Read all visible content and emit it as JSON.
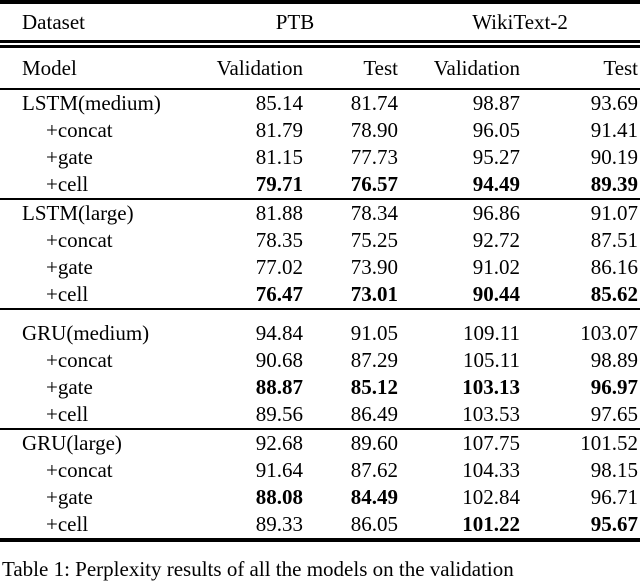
{
  "page": {
    "background_color": "#ffffff",
    "text_color": "#000000"
  },
  "table": {
    "header": {
      "dataset_label": "Dataset",
      "model_label": "Model",
      "group_ptb": "PTB",
      "group_wikitext": "WikiText-2",
      "col_validation_ptb": "Validation",
      "col_test_ptb": "Test",
      "col_validation_wt2": "Validation",
      "col_test_wt2": "Test"
    },
    "blocks": [
      {
        "rows": [
          {
            "model": "LSTM(medium)",
            "indent": false,
            "values": [
              "85.14",
              "81.74",
              "98.87",
              "93.69"
            ],
            "bold": [
              false,
              false,
              false,
              false
            ]
          },
          {
            "model": "+concat",
            "indent": true,
            "values": [
              "81.79",
              "78.90",
              "96.05",
              "91.41"
            ],
            "bold": [
              false,
              false,
              false,
              false
            ]
          },
          {
            "model": "+gate",
            "indent": true,
            "values": [
              "81.15",
              "77.73",
              "95.27",
              "90.19"
            ],
            "bold": [
              false,
              false,
              false,
              false
            ]
          },
          {
            "model": "+cell",
            "indent": true,
            "values": [
              "79.71",
              "76.57",
              "94.49",
              "89.39"
            ],
            "bold": [
              true,
              true,
              true,
              true
            ]
          }
        ]
      },
      {
        "rows": [
          {
            "model": "LSTM(large)",
            "indent": false,
            "values": [
              "81.88",
              "78.34",
              "96.86",
              "91.07"
            ],
            "bold": [
              false,
              false,
              false,
              false
            ]
          },
          {
            "model": "+concat",
            "indent": true,
            "values": [
              "78.35",
              "75.25",
              "92.72",
              "87.51"
            ],
            "bold": [
              false,
              false,
              false,
              false
            ]
          },
          {
            "model": "+gate",
            "indent": true,
            "values": [
              "77.02",
              "73.90",
              "91.02",
              "86.16"
            ],
            "bold": [
              false,
              false,
              false,
              false
            ]
          },
          {
            "model": "+cell",
            "indent": true,
            "values": [
              "76.47",
              "73.01",
              "90.44",
              "85.62"
            ],
            "bold": [
              true,
              true,
              true,
              true
            ]
          }
        ]
      },
      {
        "rows": [
          {
            "model": "GRU(medium)",
            "indent": false,
            "values": [
              "94.84",
              "91.05",
              "109.11",
              "103.07"
            ],
            "bold": [
              false,
              false,
              false,
              false
            ]
          },
          {
            "model": "+concat",
            "indent": true,
            "values": [
              "90.68",
              "87.29",
              "105.11",
              "98.89"
            ],
            "bold": [
              false,
              false,
              false,
              false
            ]
          },
          {
            "model": "+gate",
            "indent": true,
            "values": [
              "88.87",
              "85.12",
              "103.13",
              "96.97"
            ],
            "bold": [
              true,
              true,
              true,
              true
            ]
          },
          {
            "model": "+cell",
            "indent": true,
            "values": [
              "89.56",
              "86.49",
              "103.53",
              "97.65"
            ],
            "bold": [
              false,
              false,
              false,
              false
            ]
          }
        ]
      },
      {
        "rows": [
          {
            "model": "GRU(large)",
            "indent": false,
            "values": [
              "92.68",
              "89.60",
              "107.75",
              "101.52"
            ],
            "bold": [
              false,
              false,
              false,
              false
            ]
          },
          {
            "model": "+concat",
            "indent": true,
            "values": [
              "91.64",
              "87.62",
              "104.33",
              "98.15"
            ],
            "bold": [
              false,
              false,
              false,
              false
            ]
          },
          {
            "model": "+gate",
            "indent": true,
            "values": [
              "88.08",
              "84.49",
              "102.84",
              "96.71"
            ],
            "bold": [
              true,
              true,
              false,
              false
            ]
          },
          {
            "model": "+cell",
            "indent": true,
            "values": [
              "89.33",
              "86.05",
              "101.22",
              "95.67"
            ],
            "bold": [
              false,
              false,
              true,
              true
            ]
          }
        ]
      }
    ]
  },
  "caption": "Table 1: Perplexity results of all the models on the validation"
}
